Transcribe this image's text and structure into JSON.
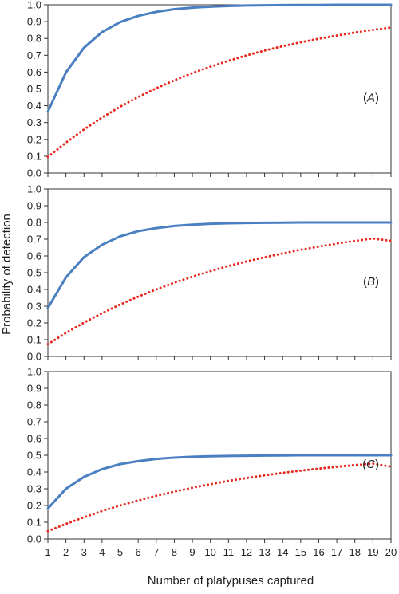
{
  "chart_data": {
    "type": "line",
    "xlabel": "Number of platypuses captured",
    "ylabel": "Probability of detection",
    "x": [
      1,
      2,
      3,
      4,
      5,
      6,
      7,
      8,
      9,
      10,
      11,
      12,
      13,
      14,
      15,
      16,
      17,
      18,
      19,
      20
    ],
    "x_ticks": [
      "1",
      "2",
      "3",
      "4",
      "5",
      "6",
      "7",
      "8",
      "9",
      "10",
      "11",
      "12",
      "13",
      "14",
      "15",
      "16",
      "17",
      "18",
      "19",
      "20"
    ],
    "y_ticks": [
      "0.0",
      "0.1",
      "0.2",
      "0.3",
      "0.4",
      "0.5",
      "0.6",
      "0.7",
      "0.8",
      "0.9",
      "1.0"
    ],
    "ylim": [
      0,
      1
    ],
    "grid": false,
    "colors": {
      "solid": "#4a7fc1",
      "dotted": "#e8261c"
    },
    "panels": [
      {
        "label_open": "(",
        "label_letter": "A",
        "label_close": ")",
        "series": [
          {
            "style": "solid",
            "values": [
              0.365,
              0.598,
              0.745,
              0.838,
              0.897,
              0.934,
              0.958,
              0.974,
              0.983,
              0.989,
              0.993,
              0.996,
              0.997,
              0.998,
              0.999,
              0.999,
              1.0,
              1.0,
              1.0,
              1.0
            ]
          },
          {
            "style": "dotted",
            "values": [
              0.095,
              0.181,
              0.259,
              0.33,
              0.394,
              0.452,
              0.504,
              0.551,
              0.594,
              0.632,
              0.667,
              0.699,
              0.728,
              0.754,
              0.777,
              0.798,
              0.817,
              0.835,
              0.851,
              0.865
            ]
          }
        ]
      },
      {
        "label_open": "(",
        "label_letter": "B",
        "label_close": ")",
        "series": [
          {
            "style": "solid",
            "values": [
              0.289,
              0.472,
              0.593,
              0.667,
              0.717,
              0.748,
              0.766,
              0.779,
              0.787,
              0.792,
              0.795,
              0.797,
              0.798,
              0.799,
              0.8,
              0.8,
              0.8,
              0.8,
              0.8,
              0.8
            ]
          },
          {
            "style": "dotted",
            "values": [
              0.073,
              0.14,
              0.202,
              0.258,
              0.31,
              0.357,
              0.4,
              0.44,
              0.476,
              0.509,
              0.54,
              0.567,
              0.592,
              0.615,
              0.637,
              0.656,
              0.674,
              0.69,
              0.704,
              0.69
            ]
          }
        ]
      },
      {
        "label_open": "(",
        "label_letter": "C",
        "label_close": ")",
        "series": [
          {
            "style": "solid",
            "values": [
              0.182,
              0.3,
              0.371,
              0.417,
              0.447,
              0.465,
              0.478,
              0.486,
              0.491,
              0.494,
              0.496,
              0.497,
              0.498,
              0.499,
              0.5,
              0.5,
              0.5,
              0.5,
              0.5,
              0.5
            ]
          },
          {
            "style": "dotted",
            "values": [
              0.047,
              0.09,
              0.13,
              0.167,
              0.2,
              0.23,
              0.258,
              0.283,
              0.306,
              0.327,
              0.347,
              0.364,
              0.38,
              0.395,
              0.408,
              0.42,
              0.431,
              0.441,
              0.45,
              0.432
            ]
          }
        ]
      }
    ]
  }
}
